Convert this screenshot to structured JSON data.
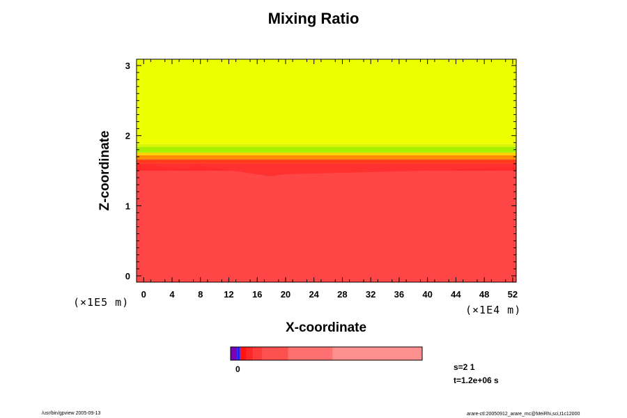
{
  "chart_data": {
    "type": "heatmap",
    "title": "Mixing Ratio",
    "xlabel": "X-coordinate",
    "ylabel": "Z-coordinate",
    "x_unit": "(×1E4 m)",
    "y_unit": "(×1E5 m)",
    "xlim": [
      -1,
      52.5
    ],
    "ylim": [
      -0.09,
      3.09
    ],
    "x_ticks": [
      0,
      4,
      8,
      12,
      16,
      20,
      24,
      28,
      32,
      36,
      40,
      44,
      48,
      52
    ],
    "y_ticks": [
      0,
      1,
      2,
      3
    ],
    "bands": [
      {
        "z_from": -0.09,
        "z_to": 1.5,
        "color": "#ff4646"
      },
      {
        "z_from": 1.5,
        "z_to": 1.6,
        "color": "#ff2a2a"
      },
      {
        "z_from": 1.6,
        "z_to": 1.66,
        "color": "#ff3c1e"
      },
      {
        "z_from": 1.66,
        "z_to": 1.72,
        "color": "#ff8c00"
      },
      {
        "z_from": 1.72,
        "z_to": 1.76,
        "color": "#ffd200"
      },
      {
        "z_from": 1.76,
        "z_to": 1.84,
        "color": "#a8f000"
      },
      {
        "z_from": 1.84,
        "z_to": 1.88,
        "color": "#d8f500"
      },
      {
        "z_from": 1.88,
        "z_to": 3.09,
        "color": "#eeff00"
      }
    ],
    "interface_depth": [
      {
        "x": 6,
        "z": 1.52
      },
      {
        "x": 7,
        "z": 1.58
      },
      {
        "x": 18,
        "z": 1.42
      },
      {
        "x": 20,
        "z": 1.45
      },
      {
        "x": 40,
        "z": 1.5
      }
    ],
    "colorbar": {
      "tick_label": "0",
      "segments": [
        {
          "color": "#7a00b4",
          "width": 1
        },
        {
          "color": "#2020ff",
          "width": 0.5
        },
        {
          "color": "#ff1414",
          "width": 1
        },
        {
          "color": "#ff2828",
          "width": 1
        },
        {
          "color": "#ff3c3c",
          "width": 1.5
        },
        {
          "color": "#ff5050",
          "width": 4
        },
        {
          "color": "#ff7070",
          "width": 7
        },
        {
          "color": "#ff9090",
          "width": 14
        }
      ]
    },
    "grid": false
  },
  "info": {
    "s_label": "s=2 1",
    "t_label": "t=1.2e+06 s"
  },
  "footer": {
    "left": "/usr/bin/gpview 2005-09-13",
    "right": "arare-ctl:20050912_arare_mc@MeiRhi,sci,t1c12000"
  }
}
